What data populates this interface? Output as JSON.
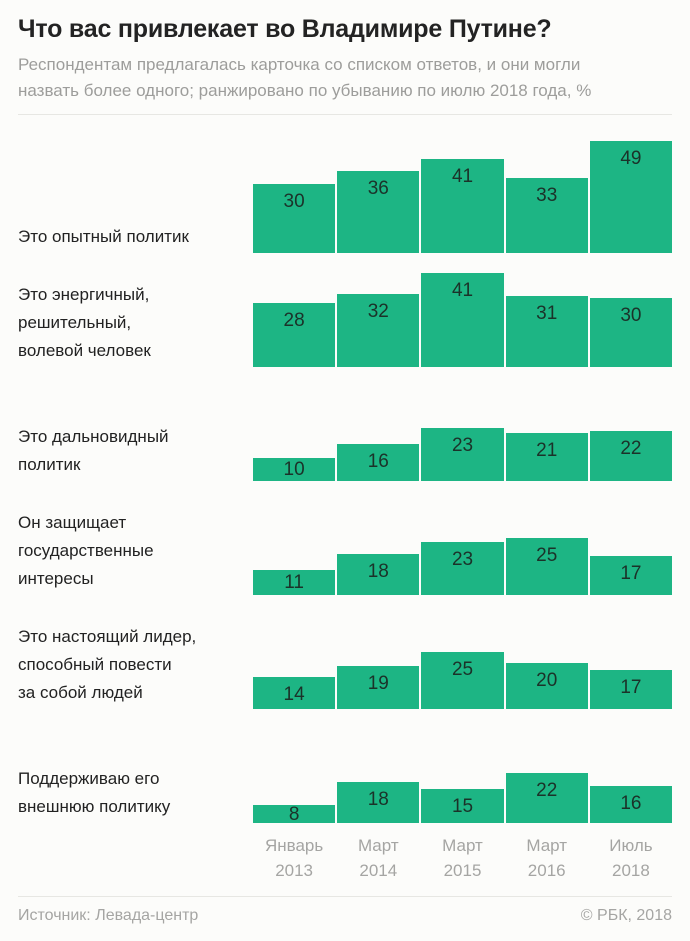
{
  "title": "Что вас привлекает во Владимире Путине?",
  "subtitle": "Респондентам предлагалась карточка со списком ответов, и они могли назвать более одного; ранжировано по убыванию по июлю 2018 года, %",
  "subtitle_lines": [
    "Респондентам предлагалась карточка со списком ответов, и они могли",
    "назвать более одного; ранжировано по убыванию по июлю 2018 года, %"
  ],
  "footer": {
    "source": "Источник: Левада-центр",
    "copyright": "© РБК, 2018"
  },
  "colors": {
    "background": "#fcfcfa",
    "bar": "#1db584",
    "title_text": "#232323",
    "label_text": "#222222",
    "value_text": "#1b3229",
    "muted_text": "#9d9d9b",
    "axis_text": "#a5a5a3",
    "divider": "#e7e7e3"
  },
  "chart_data": {
    "type": "bar",
    "unit": "%",
    "grid": false,
    "legend": "none",
    "ylim": [
      0,
      49
    ],
    "categories": [
      "Январь 2013",
      "Март 2014",
      "Март 2015",
      "Март 2016",
      "Июль 2018"
    ],
    "x_tick_lines": [
      [
        "Январь",
        "2013"
      ],
      [
        "Март",
        "2014"
      ],
      [
        "Март",
        "2015"
      ],
      [
        "Март",
        "2016"
      ],
      [
        "Июль",
        "2018"
      ]
    ],
    "series": [
      {
        "name": "Это опытный политик",
        "label_lines": [
          "Это опытный политик"
        ],
        "values": [
          30,
          36,
          41,
          33,
          49
        ]
      },
      {
        "name": "Это энергичный, решительный, волевой человек",
        "label_lines": [
          "Это энергичный,",
          "решительный,",
          "волевой человек"
        ],
        "values": [
          28,
          32,
          41,
          31,
          30
        ]
      },
      {
        "name": "Это дальновидный политик",
        "label_lines": [
          "Это дальновидный",
          "политик"
        ],
        "values": [
          10,
          16,
          23,
          21,
          22
        ]
      },
      {
        "name": "Он защищает государственные интересы",
        "label_lines": [
          "Он защищает",
          "государственные",
          "интересы"
        ],
        "values": [
          11,
          18,
          23,
          25,
          17
        ]
      },
      {
        "name": "Это настоящий лидер, способный повести за собой людей",
        "label_lines": [
          "Это настоящий лидер,",
          "способный повести",
          "за собой людей"
        ],
        "values": [
          14,
          19,
          25,
          20,
          17
        ]
      },
      {
        "name": "Поддерживаю его внешнюю политику",
        "label_lines": [
          "Поддерживаю его",
          "внешнюю политику"
        ],
        "values": [
          8,
          18,
          15,
          22,
          16
        ]
      }
    ]
  }
}
